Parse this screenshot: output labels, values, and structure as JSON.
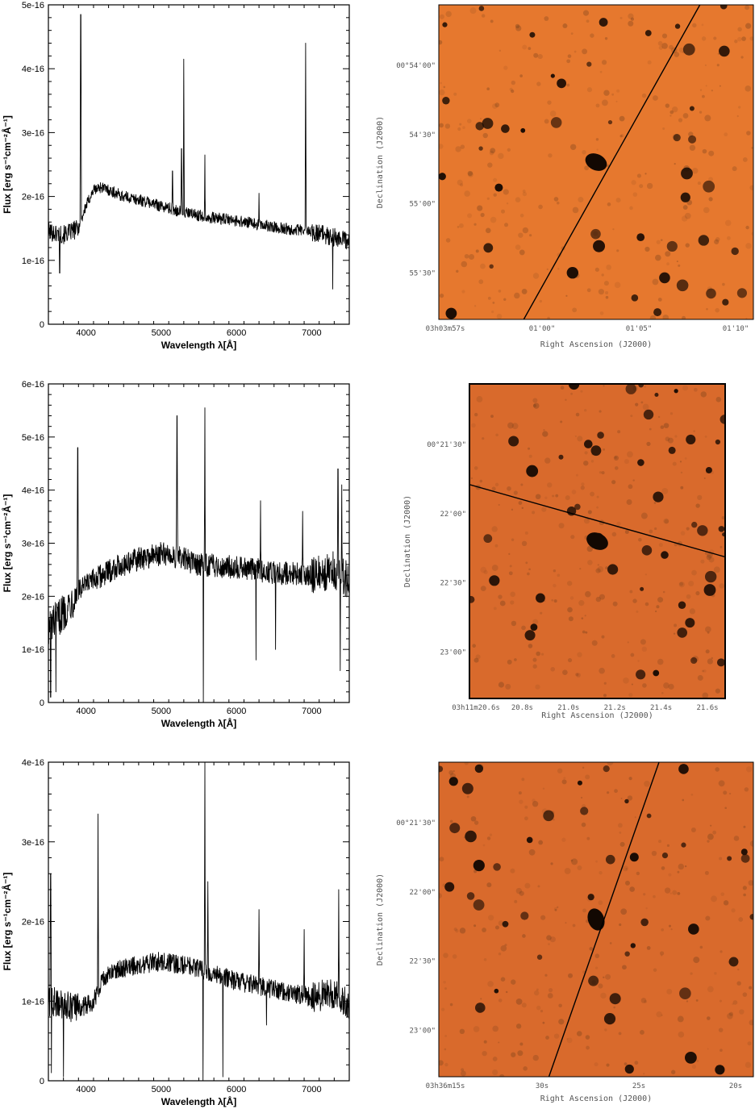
{
  "chart_data": [
    {
      "type": "line",
      "xlabel": "Wavelength λ[Å]",
      "ylabel": "Flux [erg s⁻¹cm⁻²Å⁻¹]",
      "xlim": [
        3500,
        7500
      ],
      "ylim": [
        0,
        5e-16
      ],
      "x_ticks": [
        4000,
        5000,
        6000,
        7000
      ],
      "y_ticks": [
        {
          "v": 0,
          "label": "0"
        },
        {
          "v": 1e-16,
          "label": "1e-16"
        },
        {
          "v": 2e-16,
          "label": "2e-16"
        },
        {
          "v": 3e-16,
          "label": "3e-16"
        },
        {
          "v": 4e-16,
          "label": "4e-16"
        },
        {
          "v": 5e-16,
          "label": "5e-16"
        }
      ],
      "series": [
        {
          "continuum": [
            [
              3500,
              1.45
            ],
            [
              3700,
              1.4
            ],
            [
              3900,
              1.5
            ],
            [
              4000,
              1.85
            ],
            [
              4100,
              2.1
            ],
            [
              4200,
              2.15
            ],
            [
              4300,
              2.1
            ],
            [
              4500,
              2.0
            ],
            [
              4800,
              1.92
            ],
            [
              5000,
              1.85
            ],
            [
              5300,
              1.75
            ],
            [
              5600,
              1.68
            ],
            [
              6000,
              1.62
            ],
            [
              6500,
              1.52
            ],
            [
              7000,
              1.45
            ],
            [
              7500,
              1.3
            ]
          ],
          "noise": 0.09,
          "lines": [
            [
              3930,
              4.85
            ],
            [
              5150,
              2.4
            ],
            [
              5270,
              2.75
            ],
            [
              5300,
              4.15
            ],
            [
              5580,
              2.65
            ],
            [
              6300,
              2.05
            ],
            [
              6920,
              4.4
            ]
          ],
          "dips": [
            [
              3650,
              0.8
            ],
            [
              7280,
              0.55
            ]
          ]
        }
      ]
    },
    {
      "type": "line",
      "xlabel": "Wavelength λ[Å]",
      "ylabel": "Flux [erg s⁻¹cm⁻²Å⁻¹]",
      "xlim": [
        3500,
        7500
      ],
      "ylim": [
        0,
        6e-16
      ],
      "x_ticks": [
        4000,
        5000,
        6000,
        7000
      ],
      "y_ticks": [
        {
          "v": 0,
          "label": "0"
        },
        {
          "v": 1e-16,
          "label": "1e-16"
        },
        {
          "v": 2e-16,
          "label": "2e-16"
        },
        {
          "v": 3e-16,
          "label": "3e-16"
        },
        {
          "v": 4e-16,
          "label": "4e-16"
        },
        {
          "v": 5e-16,
          "label": "5e-16"
        },
        {
          "v": 6e-16,
          "label": "6e-16"
        }
      ],
      "series": [
        {
          "continuum": [
            [
              3500,
              1.4
            ],
            [
              3700,
              1.7
            ],
            [
              3900,
              2.1
            ],
            [
              4100,
              2.3
            ],
            [
              4400,
              2.55
            ],
            [
              4700,
              2.7
            ],
            [
              5000,
              2.8
            ],
            [
              5200,
              2.75
            ],
            [
              5500,
              2.6
            ],
            [
              6000,
              2.55
            ],
            [
              6500,
              2.45
            ],
            [
              7000,
              2.4
            ],
            [
              7300,
              2.5
            ],
            [
              7500,
              2.3
            ]
          ],
          "noise": 0.22,
          "lines": [
            [
              3890,
              4.8
            ],
            [
              5210,
              5.4
            ],
            [
              5580,
              5.55
            ],
            [
              6320,
              3.8
            ],
            [
              6880,
              3.6
            ],
            [
              7350,
              4.4
            ],
            [
              7400,
              4.1
            ]
          ],
          "dips": [
            [
              3530,
              0.1
            ],
            [
              3600,
              0.2
            ],
            [
              5560,
              0.0
            ],
            [
              6260,
              0.8
            ],
            [
              6520,
              1.0
            ],
            [
              7380,
              0.6
            ]
          ]
        }
      ]
    },
    {
      "type": "line",
      "xlabel": "Wavelength λ[Å]",
      "ylabel": "Flux [erg s⁻¹cm⁻²Å⁻¹]",
      "xlim": [
        3500,
        7500
      ],
      "ylim": [
        0,
        4e-16
      ],
      "x_ticks": [
        4000,
        5000,
        6000,
        7000
      ],
      "y_ticks": [
        {
          "v": 0,
          "label": "0"
        },
        {
          "v": 1e-16,
          "label": "1e-16"
        },
        {
          "v": 2e-16,
          "label": "2e-16"
        },
        {
          "v": 3e-16,
          "label": "3e-16"
        },
        {
          "v": 4e-16,
          "label": "4e-16"
        }
      ],
      "series": [
        {
          "continuum": [
            [
              3500,
              1.0
            ],
            [
              3700,
              0.95
            ],
            [
              3900,
              0.9
            ],
            [
              4100,
              1.0
            ],
            [
              4200,
              1.25
            ],
            [
              4400,
              1.4
            ],
            [
              4700,
              1.45
            ],
            [
              5000,
              1.5
            ],
            [
              5300,
              1.45
            ],
            [
              5600,
              1.38
            ],
            [
              6000,
              1.25
            ],
            [
              6500,
              1.15
            ],
            [
              7000,
              1.05
            ],
            [
              7300,
              1.1
            ],
            [
              7500,
              0.95
            ]
          ],
          "noise": 0.12,
          "lines": [
            [
              3530,
              2.6
            ],
            [
              4160,
              3.35
            ],
            [
              5580,
              4.0
            ],
            [
              5620,
              2.5
            ],
            [
              6300,
              2.15
            ],
            [
              6900,
              1.9
            ],
            [
              7360,
              2.4
            ]
          ],
          "dips": [
            [
              3540,
              0.1
            ],
            [
              3700,
              0.05
            ],
            [
              5555,
              0.0
            ],
            [
              5820,
              0.05
            ],
            [
              6400,
              0.7
            ]
          ]
        }
      ]
    }
  ],
  "images": [
    {
      "kind": "sky-cutout",
      "ylabel": "Declination (J2000)",
      "xlabel": "Right Ascension (J2000)",
      "y_ticks": [
        "00°54'00\"",
        "54'30\"",
        "55'00\"",
        "55'30\""
      ],
      "x_ticks": [
        "03h03m57s",
        "01'00\"",
        "01'05\"",
        "01'10\""
      ],
      "slit": [
        [
          0.27,
          1.0
        ],
        [
          0.83,
          0.0
        ]
      ],
      "colors": {
        "bg": "#e6782e",
        "speck": "#6a3a1a"
      }
    },
    {
      "kind": "sky-cutout",
      "ylabel": "Declination (J2000)",
      "xlabel": "Right Ascension (J2000)",
      "y_ticks": [
        "00°21'30\"",
        "22'00\"",
        "22'30\"",
        "23'00\""
      ],
      "x_ticks": [
        "03h11m20.6s",
        "20.8s",
        "21.0s",
        "21.2s",
        "21.4s",
        "21.6s"
      ],
      "slit": [
        [
          0.0,
          0.32
        ],
        [
          1.0,
          0.55
        ]
      ],
      "colors": {
        "bg": "#d96a2c",
        "speck": "#6a3a1a"
      }
    },
    {
      "kind": "sky-cutout",
      "ylabel": "Declination (J2000)",
      "xlabel": "Right Ascension (J2000)",
      "y_ticks": [
        "00°21'30\"",
        "22'00\"",
        "22'30\"",
        "23'00\""
      ],
      "x_ticks": [
        "03h36m15s",
        "30s",
        "25s",
        "20s"
      ],
      "slit": [
        [
          0.35,
          1.0
        ],
        [
          0.7,
          0.0
        ]
      ],
      "colors": {
        "bg": "#d96a2c",
        "speck": "#6a3a1a"
      }
    }
  ]
}
